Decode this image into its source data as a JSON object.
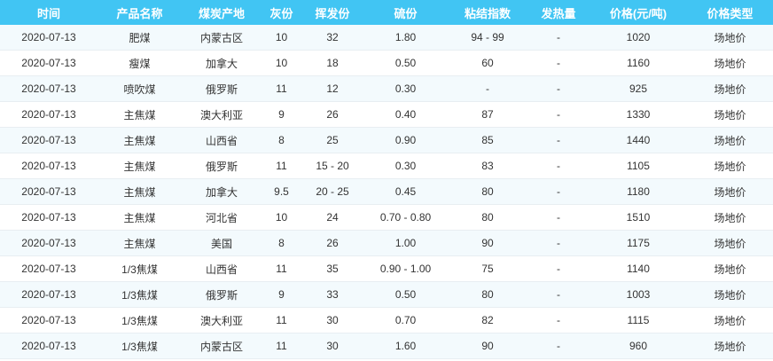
{
  "colors": {
    "header_bg": "#41c5f3",
    "stripe_bg": "#f3fafd"
  },
  "headers": [
    "时间",
    "产品名称",
    "煤炭产地",
    "灰份",
    "挥发份",
    "硫份",
    "粘结指数",
    "发热量",
    "价格(元/吨)",
    "价格类型"
  ],
  "rows": [
    [
      "2020-07-13",
      "肥煤",
      "内蒙古区",
      "10",
      "32",
      "1.80",
      "94 - 99",
      "-",
      "1020",
      "场地价"
    ],
    [
      "2020-07-13",
      "瘦煤",
      "加拿大",
      "10",
      "18",
      "0.50",
      "60",
      "-",
      "1160",
      "场地价"
    ],
    [
      "2020-07-13",
      "喷吹煤",
      "俄罗斯",
      "11",
      "12",
      "0.30",
      "-",
      "-",
      "925",
      "场地价"
    ],
    [
      "2020-07-13",
      "主焦煤",
      "澳大利亚",
      "9",
      "26",
      "0.40",
      "87",
      "-",
      "1330",
      "场地价"
    ],
    [
      "2020-07-13",
      "主焦煤",
      "山西省",
      "8",
      "25",
      "0.90",
      "85",
      "-",
      "1440",
      "场地价"
    ],
    [
      "2020-07-13",
      "主焦煤",
      "俄罗斯",
      "11",
      "15 - 20",
      "0.30",
      "83",
      "-",
      "1105",
      "场地价"
    ],
    [
      "2020-07-13",
      "主焦煤",
      "加拿大",
      "9.5",
      "20 - 25",
      "0.45",
      "80",
      "-",
      "1180",
      "场地价"
    ],
    [
      "2020-07-13",
      "主焦煤",
      "河北省",
      "10",
      "24",
      "0.70 - 0.80",
      "80",
      "-",
      "1510",
      "场地价"
    ],
    [
      "2020-07-13",
      "主焦煤",
      "美国",
      "8",
      "26",
      "1.00",
      "90",
      "-",
      "1175",
      "场地价"
    ],
    [
      "2020-07-13",
      "1/3焦煤",
      "山西省",
      "11",
      "35",
      "0.90 - 1.00",
      "75",
      "-",
      "1140",
      "场地价"
    ],
    [
      "2020-07-13",
      "1/3焦煤",
      "俄罗斯",
      "9",
      "33",
      "0.50",
      "80",
      "-",
      "1003",
      "场地价"
    ],
    [
      "2020-07-13",
      "1/3焦煤",
      "澳大利亚",
      "11",
      "30",
      "0.70",
      "82",
      "-",
      "1115",
      "场地价"
    ],
    [
      "2020-07-13",
      "1/3焦煤",
      "内蒙古区",
      "11",
      "30",
      "1.60",
      "90",
      "-",
      "960",
      "场地价"
    ]
  ]
}
